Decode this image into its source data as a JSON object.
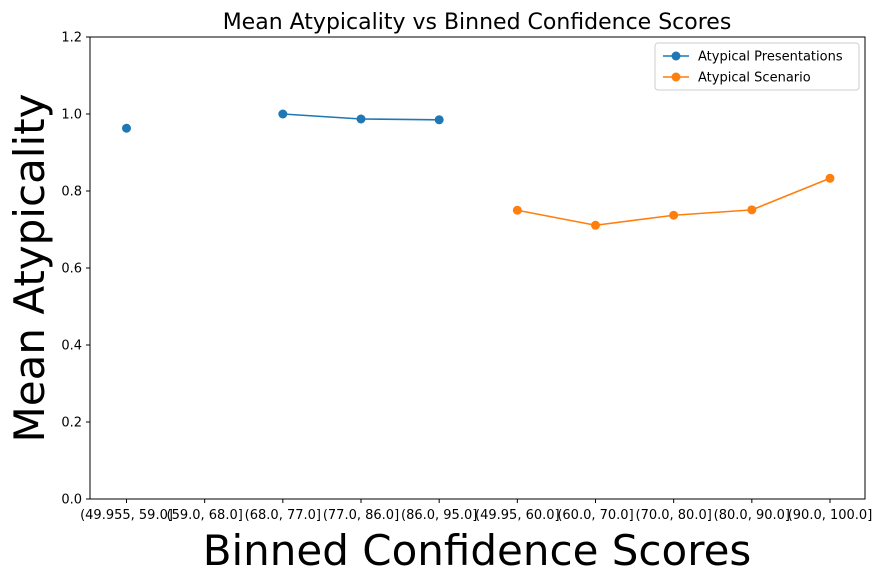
{
  "chart_data": {
    "type": "line",
    "title": "Mean Atypicality vs Binned Confidence Scores",
    "xlabel": "Binned Confidence Scores",
    "ylabel": "Mean Atypicality",
    "categories": [
      "(49.955, 59.0]",
      "(59.0, 68.0]",
      "(68.0, 77.0]",
      "(77.0, 86.0]",
      "(86.0, 95.0]",
      "(49.95, 60.0]",
      "(60.0, 70.0]",
      "(70.0, 80.0]",
      "(80.0, 90.0]",
      "(90.0, 100.0]"
    ],
    "ylim": [
      0,
      1.2
    ],
    "yticks": [
      "0.0",
      "0.2",
      "0.4",
      "0.6",
      "0.8",
      "1.0",
      "1.2"
    ],
    "legend_position": "top-right",
    "grid": false,
    "series": [
      {
        "name": "Atypical Presentations",
        "color": "#1f77b4",
        "values": [
          0.963,
          null,
          1.0,
          0.987,
          0.985,
          null,
          null,
          null,
          null,
          null
        ]
      },
      {
        "name": "Atypical Scenario",
        "color": "#ff7f0e",
        "values": [
          null,
          null,
          null,
          null,
          null,
          0.75,
          0.711,
          0.737,
          0.751,
          0.833
        ]
      }
    ]
  }
}
